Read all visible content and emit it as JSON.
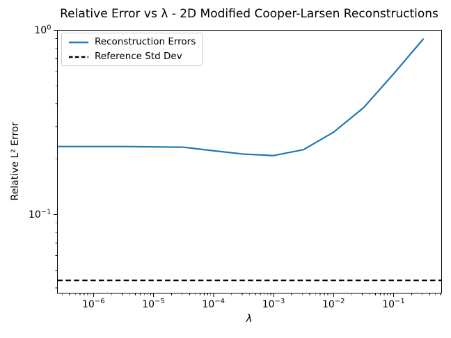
{
  "chart_data": {
    "type": "line",
    "title": "Relative Error vs λ - 2D Modified Cooper-Larsen Reconstructions",
    "xlabel": "λ",
    "ylabel": "Relative L² Error",
    "x_scale": "log",
    "y_scale": "log",
    "xlim": [
      2.51e-07,
      0.631
    ],
    "ylim": [
      0.0375,
      1.0
    ],
    "grid": false,
    "x": [
      1e-07,
      3.16e-07,
      1e-06,
      3.16e-06,
      1e-05,
      3.16e-05,
      0.0001,
      0.000316,
      0.001,
      0.00316,
      0.01,
      0.0316,
      0.1,
      0.316
    ],
    "series": [
      {
        "name": "Reconstruction Errors",
        "color": "#1f77b4",
        "line_style": "solid",
        "values": [
          0.234,
          0.234,
          0.234,
          0.234,
          0.233,
          0.232,
          0.222,
          0.213,
          0.209,
          0.225,
          0.28,
          0.38,
          0.58,
          0.9
        ]
      },
      {
        "name": "Reference Std Dev",
        "color": "#000000",
        "line_style": "dashed",
        "constant": 0.044
      }
    ],
    "x_tick_exponents": [
      -6,
      -5,
      -4,
      -3,
      -2,
      -1
    ],
    "y_tick_exponents": [
      0,
      -1
    ],
    "legend": {
      "location": "upper left",
      "entries": [
        "Reconstruction Errors",
        "Reference Std Dev"
      ]
    }
  }
}
